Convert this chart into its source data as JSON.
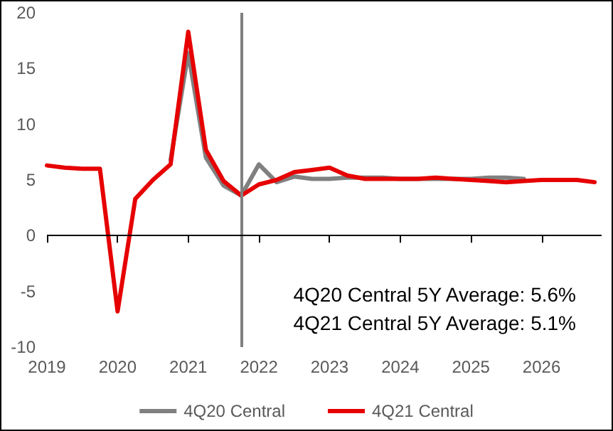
{
  "chart_data": {
    "type": "line",
    "xlim": [
      2019,
      2026.85
    ],
    "xticks": [
      2019,
      2020,
      2021,
      2022,
      2023,
      2024,
      2025,
      2026
    ],
    "ylim": [
      -10,
      20
    ],
    "yticks": [
      -10,
      -5,
      0,
      5,
      10,
      15,
      20
    ],
    "grid": false,
    "legend": "bottom",
    "marker": "none",
    "line_style": "solid",
    "x": [
      2019,
      2019.25,
      2019.5,
      2019.75,
      2020,
      2020.25,
      2020.5,
      2020.75,
      2021,
      2021.25,
      2021.5,
      2021.75,
      2022,
      2022.25,
      2022.5,
      2022.75,
      2023,
      2023.25,
      2023.5,
      2023.75,
      2024,
      2024.25,
      2024.5,
      2024.75,
      2025,
      2025.25,
      2025.5,
      2025.75,
      2026,
      2026.25,
      2026.5,
      2026.75
    ],
    "series": [
      {
        "name": "4Q20 Central",
        "color": "#808080",
        "values": [
          null,
          null,
          null,
          null,
          null,
          null,
          null,
          6.8,
          16.4,
          7.0,
          4.5,
          3.6,
          6.4,
          4.8,
          5.3,
          5.1,
          5.1,
          5.2,
          5.2,
          5.2,
          5.1,
          5.1,
          5.1,
          5.1,
          5.1,
          5.2,
          5.2,
          5.1,
          null,
          null,
          null,
          null
        ]
      },
      {
        "name": "4Q21 Central",
        "color": "#e60000",
        "values": [
          6.3,
          6.1,
          6.0,
          6.0,
          -6.8,
          3.3,
          5.0,
          6.4,
          18.3,
          7.7,
          4.9,
          3.6,
          4.6,
          5.0,
          5.7,
          5.9,
          6.1,
          5.4,
          5.1,
          5.1,
          5.1,
          5.1,
          5.2,
          5.1,
          5.0,
          4.9,
          4.8,
          4.9,
          5.0,
          5.0,
          5.0,
          4.8
        ]
      }
    ],
    "ref_lines": [
      {
        "axis": "x",
        "value": 2021.75,
        "color": "#808080"
      },
      {
        "axis": "y",
        "value": 0,
        "color": "#000000"
      }
    ],
    "annotations": [
      "4Q20 Central 5Y Average: 5.6%",
      "4Q21 Central 5Y Average: 5.1%"
    ]
  }
}
